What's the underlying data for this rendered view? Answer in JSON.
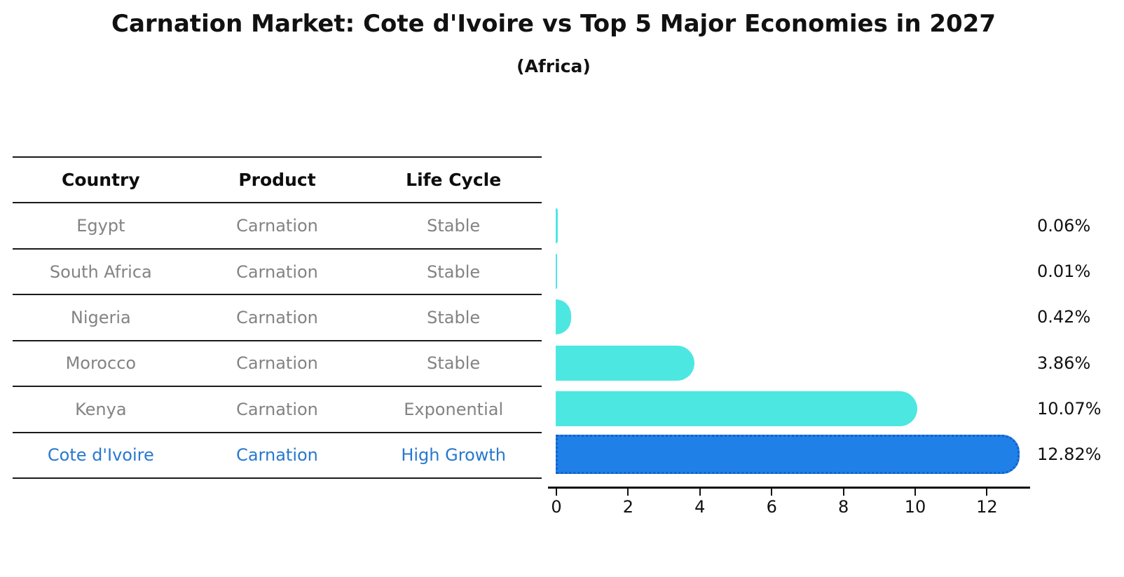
{
  "title": "Carnation Market: Cote d'Ivoire vs Top 5 Major Economies in 2027",
  "subtitle": "(Africa)",
  "table": {
    "headers": [
      "Country",
      "Product",
      "Life Cycle"
    ],
    "rows": [
      {
        "country": "Egypt",
        "product": "Carnation",
        "life_cycle": "Stable"
      },
      {
        "country": "South Africa",
        "product": "Carnation",
        "life_cycle": "Stable"
      },
      {
        "country": "Nigeria",
        "product": "Carnation",
        "life_cycle": "Stable"
      },
      {
        "country": "Morocco",
        "product": "Carnation",
        "life_cycle": "Stable"
      },
      {
        "country": "Kenya",
        "product": "Carnation",
        "life_cycle": "Exponential"
      },
      {
        "country": "Cote d'Ivoire",
        "product": "Carnation",
        "life_cycle": "High Growth"
      }
    ]
  },
  "chart_data": {
    "type": "bar",
    "orientation": "horizontal",
    "title": "Carnation Market: Cote d'Ivoire vs Top 5 Major Economies in 2027",
    "subtitle": "(Africa)",
    "categories": [
      "Egypt",
      "South Africa",
      "Nigeria",
      "Morocco",
      "Kenya",
      "Cote d'Ivoire"
    ],
    "values": [
      0.06,
      0.01,
      0.42,
      3.86,
      10.07,
      12.82
    ],
    "value_labels": [
      "0.06%",
      "0.01%",
      "0.42%",
      "3.86%",
      "10.07%",
      "12.82%"
    ],
    "x_ticks": [
      0,
      2,
      4,
      6,
      8,
      10,
      12
    ],
    "xlim": [
      0,
      13.3
    ],
    "highlight_index": 5,
    "grid": false,
    "legend": false,
    "colors": {
      "bar": "#4DE7E2",
      "highlight_bar": "#1F80E8",
      "highlight_bar_border": "#1560C8",
      "highlight_text": "#2878CF",
      "row_text": "#838383",
      "header_text": "#0d0d0d",
      "axis": "#111111"
    }
  }
}
